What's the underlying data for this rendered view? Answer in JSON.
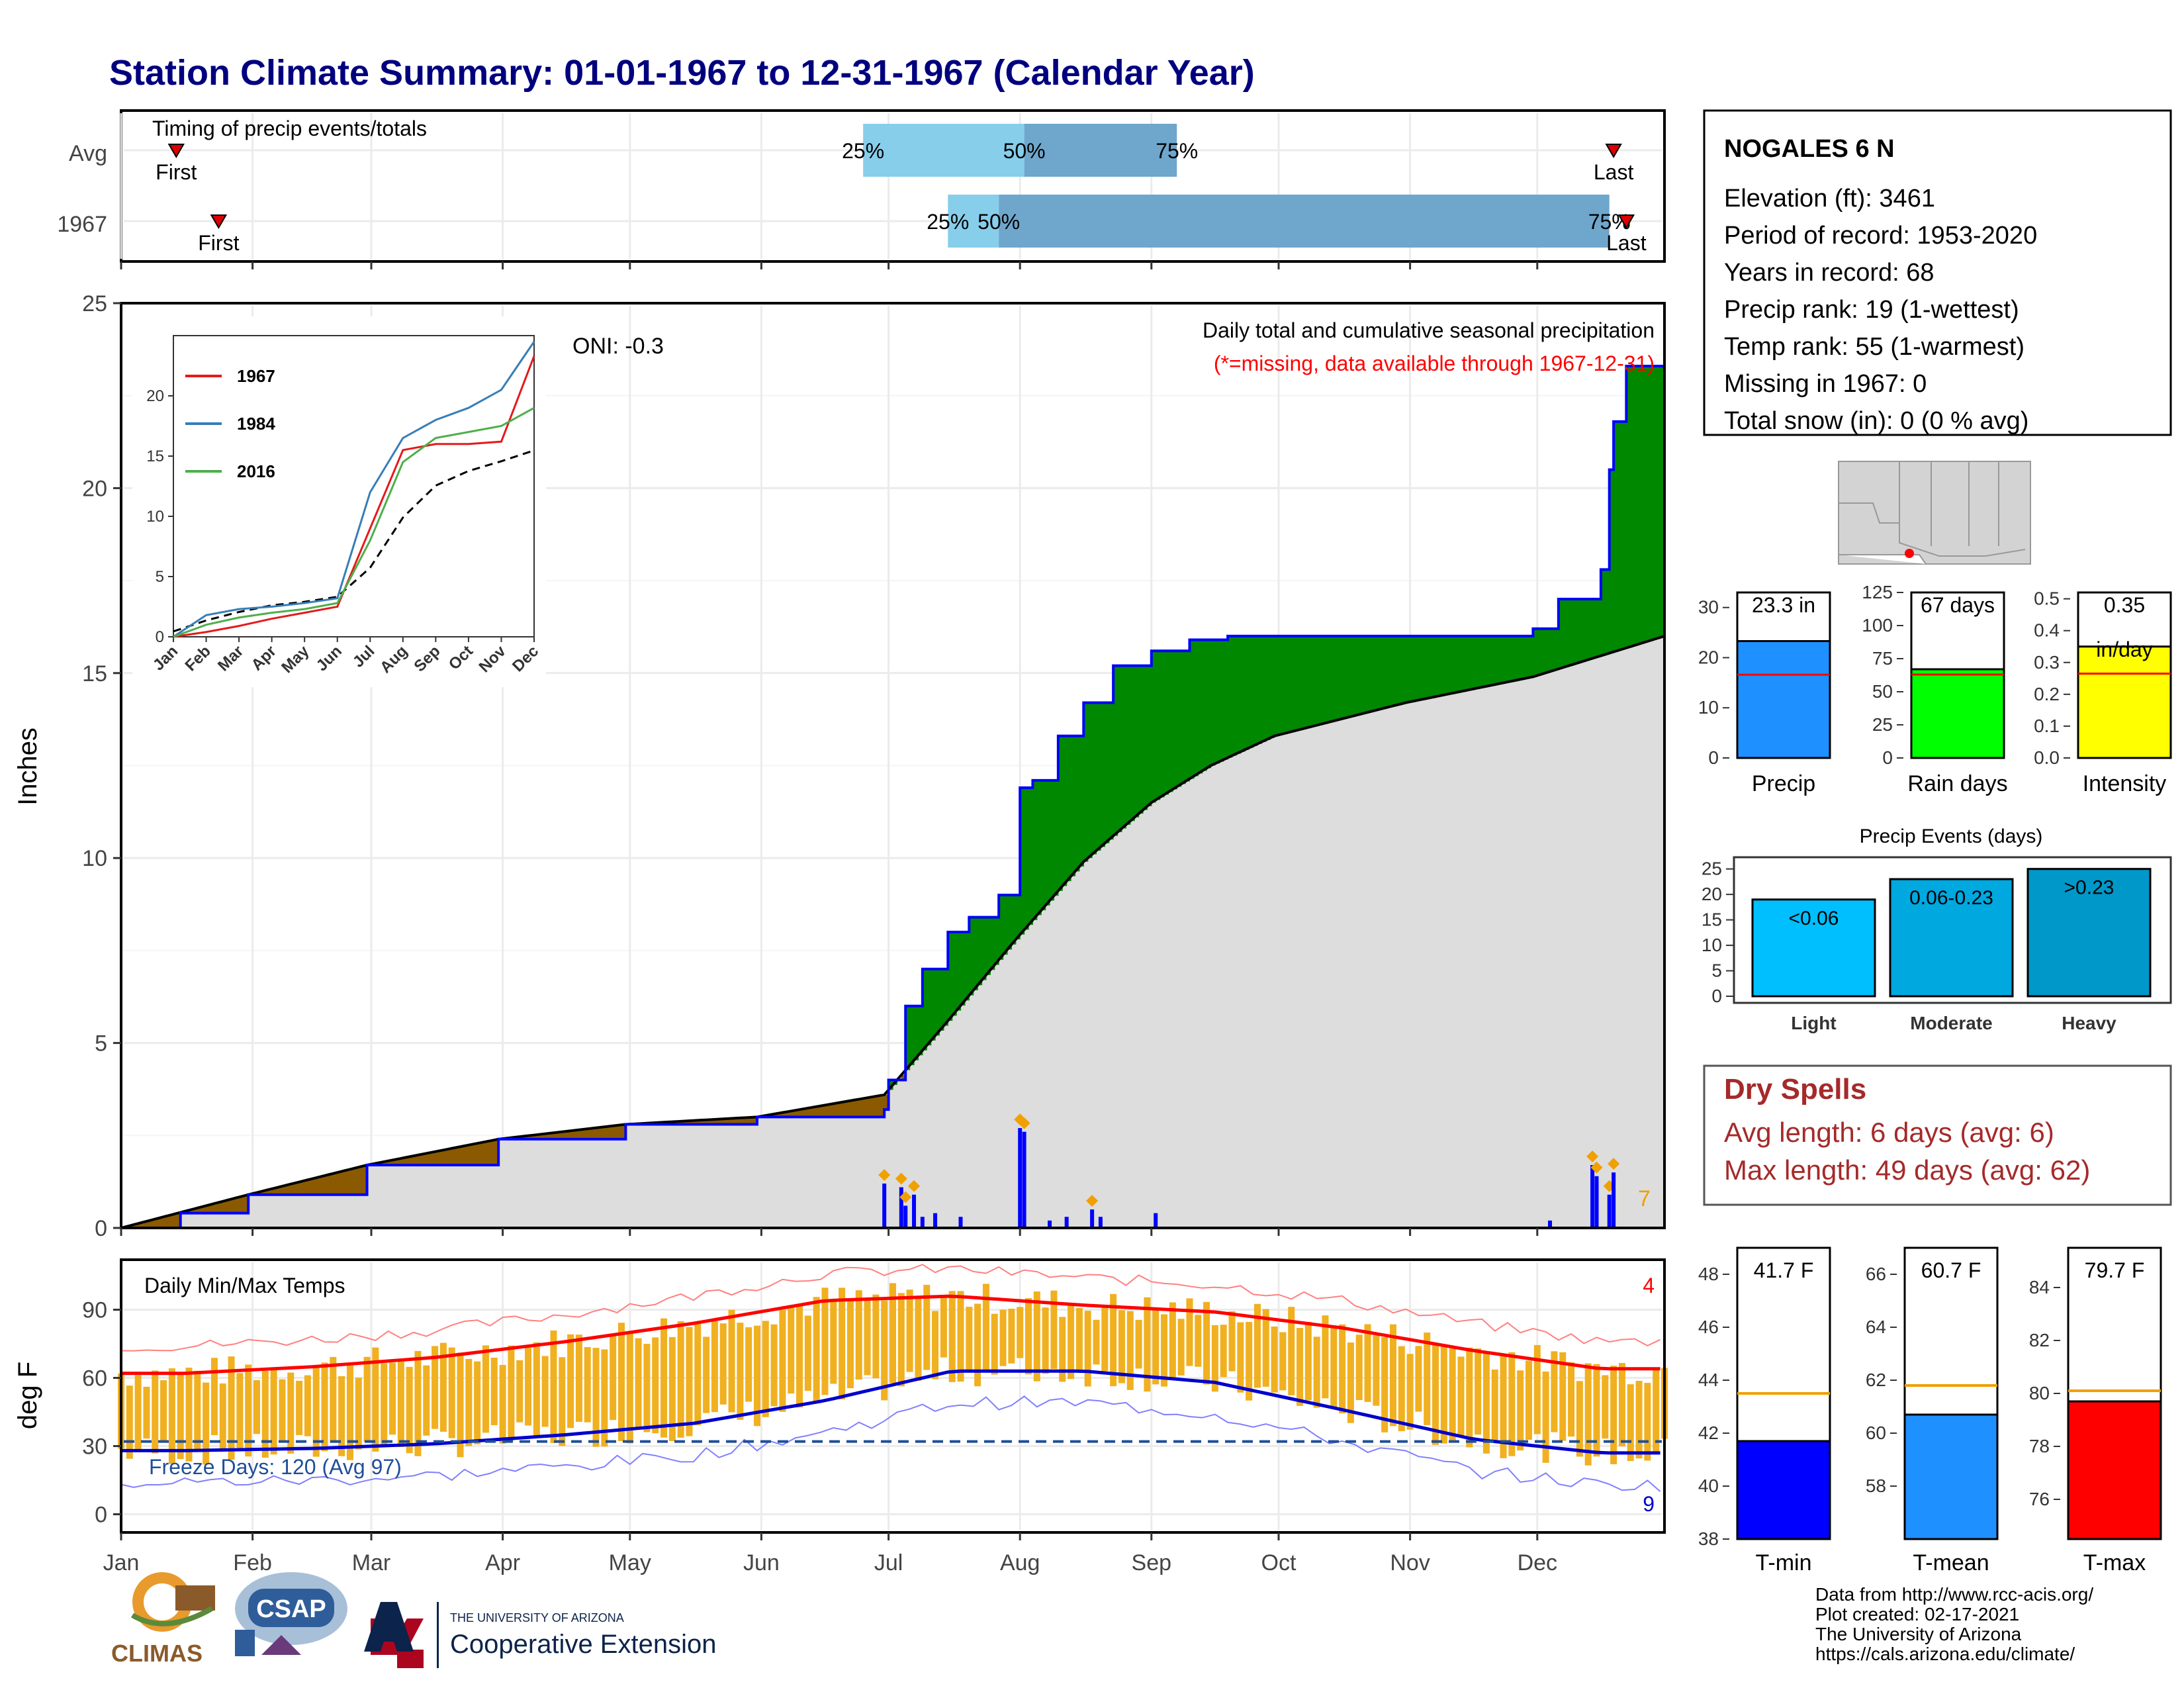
{
  "title": "Station Climate Summary: 01-01-1967 to 12-31-1967 (Calendar Year)",
  "colors": {
    "title": "#00007f",
    "precip_above": "#008800",
    "precip_below": "#8b5a00",
    "avg_fill": "#dddddd",
    "daily_bar": "#0000ff",
    "temp_bar": "#f0b020",
    "tmax_avg": "#ff0000",
    "tmin_avg": "#0000cc",
    "dry_spell_text": "#a52a2a",
    "timing_light": "#87ceeb",
    "timing_dark": "#6fa6cc"
  },
  "timing": {
    "title": "Timing of precip events/totals",
    "rows": [
      {
        "label": "Avg",
        "first_doy": 14,
        "p25": 176,
        "p50": 214,
        "p75": 250,
        "last_doy": 353,
        "first_label": "First",
        "last_label": "Last"
      },
      {
        "label": "1967",
        "first_doy": 24,
        "p25": 196,
        "p50": 208,
        "p75": 352,
        "last_doy": 356,
        "first_label": "First",
        "last_label": "Last"
      }
    ],
    "pct_labels": [
      "25%",
      "50%",
      "75%"
    ]
  },
  "precip_panel": {
    "ylabel": "Inches",
    "oni": "ONI: -0.3",
    "title": "Daily total and cumulative seasonal precipitation",
    "subtitle": "(*=missing, data available through 1967-12-31)",
    "count_label": "7",
    "y_ticks": [
      "0",
      "5",
      "10",
      "15",
      "20",
      "25"
    ]
  },
  "inset": {
    "legend": [
      "1967",
      "1984",
      "2016"
    ],
    "legend_colors": [
      "#e41a1c",
      "#377eb8",
      "#4daf4a"
    ],
    "y_ticks": [
      "0",
      "5",
      "10",
      "15",
      "20"
    ],
    "x_ticks": [
      "Jan",
      "Feb",
      "Mar",
      "Apr",
      "May",
      "Jun",
      "Jul",
      "Aug",
      "Sep",
      "Oct",
      "Nov",
      "Dec"
    ]
  },
  "temp_panel": {
    "ylabel": "deg F",
    "title": "Daily Min/Max Temps",
    "freeze": "Freeze Days: 120 (Avg 97)",
    "max_count": "4",
    "min_count": "9",
    "y_ticks": [
      "0",
      "30",
      "60",
      "90"
    ]
  },
  "months": [
    "Jan",
    "Feb",
    "Mar",
    "Apr",
    "May",
    "Jun",
    "Jul",
    "Aug",
    "Sep",
    "Oct",
    "Nov",
    "Dec"
  ],
  "station": {
    "name": "NOGALES 6 N",
    "lines": [
      "Elevation (ft): 3461",
      "Period of record: 1953-2020",
      "Years in record: 68",
      "Precip rank: 19 (1-wettest)",
      "Temp rank: 55 (1-warmest)",
      "Missing in 1967: 0",
      "Total snow (in): 0 (0 % avg)"
    ]
  },
  "summary_bars": {
    "precip": {
      "label": "Precip",
      "value_label": "23.3 in",
      "value": 23.3,
      "avg": 16.6,
      "ylim": [
        0,
        33
      ],
      "ticks": [
        "0",
        "10",
        "20",
        "30"
      ]
    },
    "rain_days": {
      "label": "Rain days",
      "value_label": "67 days",
      "value": 67,
      "avg": 63,
      "ylim": [
        0,
        125
      ],
      "ticks": [
        "0",
        "25",
        "50",
        "75",
        "100",
        "125"
      ]
    },
    "intensity": {
      "label": "Intensity",
      "value_label": "0.35",
      "unit_label": "in/day",
      "value": 0.35,
      "avg": 0.265,
      "ylim": [
        0,
        0.52
      ],
      "ticks": [
        "0.0",
        "0.1",
        "0.2",
        "0.3",
        "0.4",
        "0.5"
      ]
    }
  },
  "precip_events": {
    "title": "Precip Events (days)",
    "ticks": [
      "0",
      "5",
      "10",
      "15",
      "20",
      "25"
    ],
    "bars": [
      {
        "label": "Light",
        "text": "<0.06",
        "value": 19,
        "color": "#00bfff"
      },
      {
        "label": "Moderate",
        "text": "0.06-0.23",
        "value": 23,
        "color": "#00a8e0"
      },
      {
        "label": "Heavy",
        "text": ">0.23",
        "value": 25,
        "color": "#0098c8"
      }
    ]
  },
  "dry_spells": {
    "title": "Dry Spells",
    "avg": "Avg length: 6 days (avg: 6)",
    "max": "Max length: 49 days (avg: 62)"
  },
  "temp_summary": {
    "tmin": {
      "label": "T-min",
      "value_label": "41.7 F",
      "value": 41.7,
      "avg": 43.5,
      "ylim": [
        38,
        49
      ],
      "ticks": [
        "38",
        "40",
        "42",
        "44",
        "46",
        "48"
      ],
      "color": "#0000ff"
    },
    "tmean": {
      "label": "T-mean",
      "value_label": "60.7 F",
      "value": 60.7,
      "avg": 61.8,
      "ylim": [
        56,
        67
      ],
      "ticks": [
        "58",
        "60",
        "62",
        "64",
        "66"
      ],
      "color": "#1e90ff"
    },
    "tmax": {
      "label": "T-max",
      "value_label": "79.7 F",
      "value": 79.7,
      "avg": 80.1,
      "ylim": [
        74.5,
        85.5
      ],
      "ticks": [
        "76",
        "78",
        "80",
        "82",
        "84"
      ],
      "color": "#ff0000"
    }
  },
  "footer": {
    "lines": [
      "Data from http://www.rcc-acis.org/",
      "Plot created: 02-17-2021",
      "The University of Arizona",
      "https://cals.arizona.edu/climate/"
    ],
    "climas": "CLIMAS",
    "csap": "CSAP",
    "ua_small": "THE UNIVERSITY OF ARIZONA",
    "ua_big": "Cooperative Extension"
  },
  "chart_data": [
    {
      "type": "area",
      "title": "Daily total and cumulative seasonal precipitation",
      "ylabel": "Inches",
      "ylim": [
        0,
        25
      ],
      "series": [
        {
          "name": "1967",
          "x": [
            1,
            15,
            31,
            59,
            90,
            120,
            151,
            181,
            182,
            186,
            190,
            196,
            201,
            208,
            213,
            216,
            222,
            228,
            235,
            244,
            253,
            262,
            273,
            304,
            334,
            340,
            350,
            352,
            353,
            356,
            365
          ],
          "values": [
            0,
            0.4,
            0.9,
            1.7,
            2.4,
            2.8,
            3.0,
            3.2,
            4.0,
            6.0,
            7.0,
            8.0,
            8.4,
            9.0,
            11.9,
            12.1,
            13.3,
            14.2,
            15.2,
            15.6,
            15.9,
            16.0,
            16.0,
            16.0,
            16.2,
            17.0,
            17.8,
            20.5,
            21.8,
            23.3,
            23.3
          ]
        },
        {
          "name": "Avg",
          "x": [
            1,
            31,
            59,
            90,
            120,
            151,
            181,
            196,
            212,
            228,
            244,
            258,
            273,
            304,
            334,
            365
          ],
          "values": [
            0,
            0.9,
            1.7,
            2.4,
            2.8,
            3.0,
            3.6,
            5.6,
            7.8,
            9.9,
            11.5,
            12.5,
            13.3,
            14.2,
            14.9,
            16.0
          ]
        }
      ],
      "daily_x": [
        181,
        185,
        186,
        188,
        190,
        193,
        199,
        213,
        214,
        220,
        224,
        230,
        232,
        245,
        338,
        348,
        349,
        352,
        353
      ],
      "daily_values": [
        1.2,
        1.1,
        0.6,
        0.9,
        0.3,
        0.4,
        0.3,
        2.7,
        2.6,
        0.2,
        0.3,
        0.5,
        0.3,
        0.4,
        0.2,
        1.7,
        1.4,
        0.9,
        1.5
      ]
    },
    {
      "type": "line",
      "title": "Daily Min/Max Temps",
      "ylabel": "deg F",
      "ylim": [
        -8,
        112
      ],
      "x_months": [
        "Jan",
        "Feb",
        "Mar",
        "Apr",
        "May",
        "Jun",
        "Jul",
        "Aug",
        "Sep",
        "Oct",
        "Nov",
        "Dec"
      ],
      "avg_tmax": [
        62,
        65,
        69,
        76,
        84,
        94,
        96,
        92,
        89,
        82,
        72,
        64
      ],
      "avg_tmin": [
        28,
        29,
        31,
        35,
        40,
        50,
        63,
        63,
        58,
        46,
        33,
        27
      ],
      "freeze_line": 32
    },
    {
      "type": "line",
      "title": "",
      "series": [
        {
          "name": "1967",
          "values": [
            0,
            0.4,
            0.9,
            1.5,
            2.0,
            2.5,
            9.0,
            15.5,
            16.0,
            16.0,
            16.2,
            23.3
          ]
        },
        {
          "name": "1984",
          "values": [
            0,
            1.8,
            2.3,
            2.5,
            2.8,
            3.2,
            12.0,
            16.5,
            18.0,
            19.0,
            20.5,
            24.5
          ]
        },
        {
          "name": "2016",
          "values": [
            0,
            1.0,
            1.6,
            2.0,
            2.3,
            2.8,
            8.0,
            14.5,
            16.5,
            17.0,
            17.5,
            19.0
          ]
        }
      ],
      "x": [
        "Jan",
        "Feb",
        "Mar",
        "Apr",
        "May",
        "Jun",
        "Jul",
        "Aug",
        "Sep",
        "Oct",
        "Nov",
        "Dec"
      ],
      "ylim": [
        0,
        25
      ]
    }
  ]
}
